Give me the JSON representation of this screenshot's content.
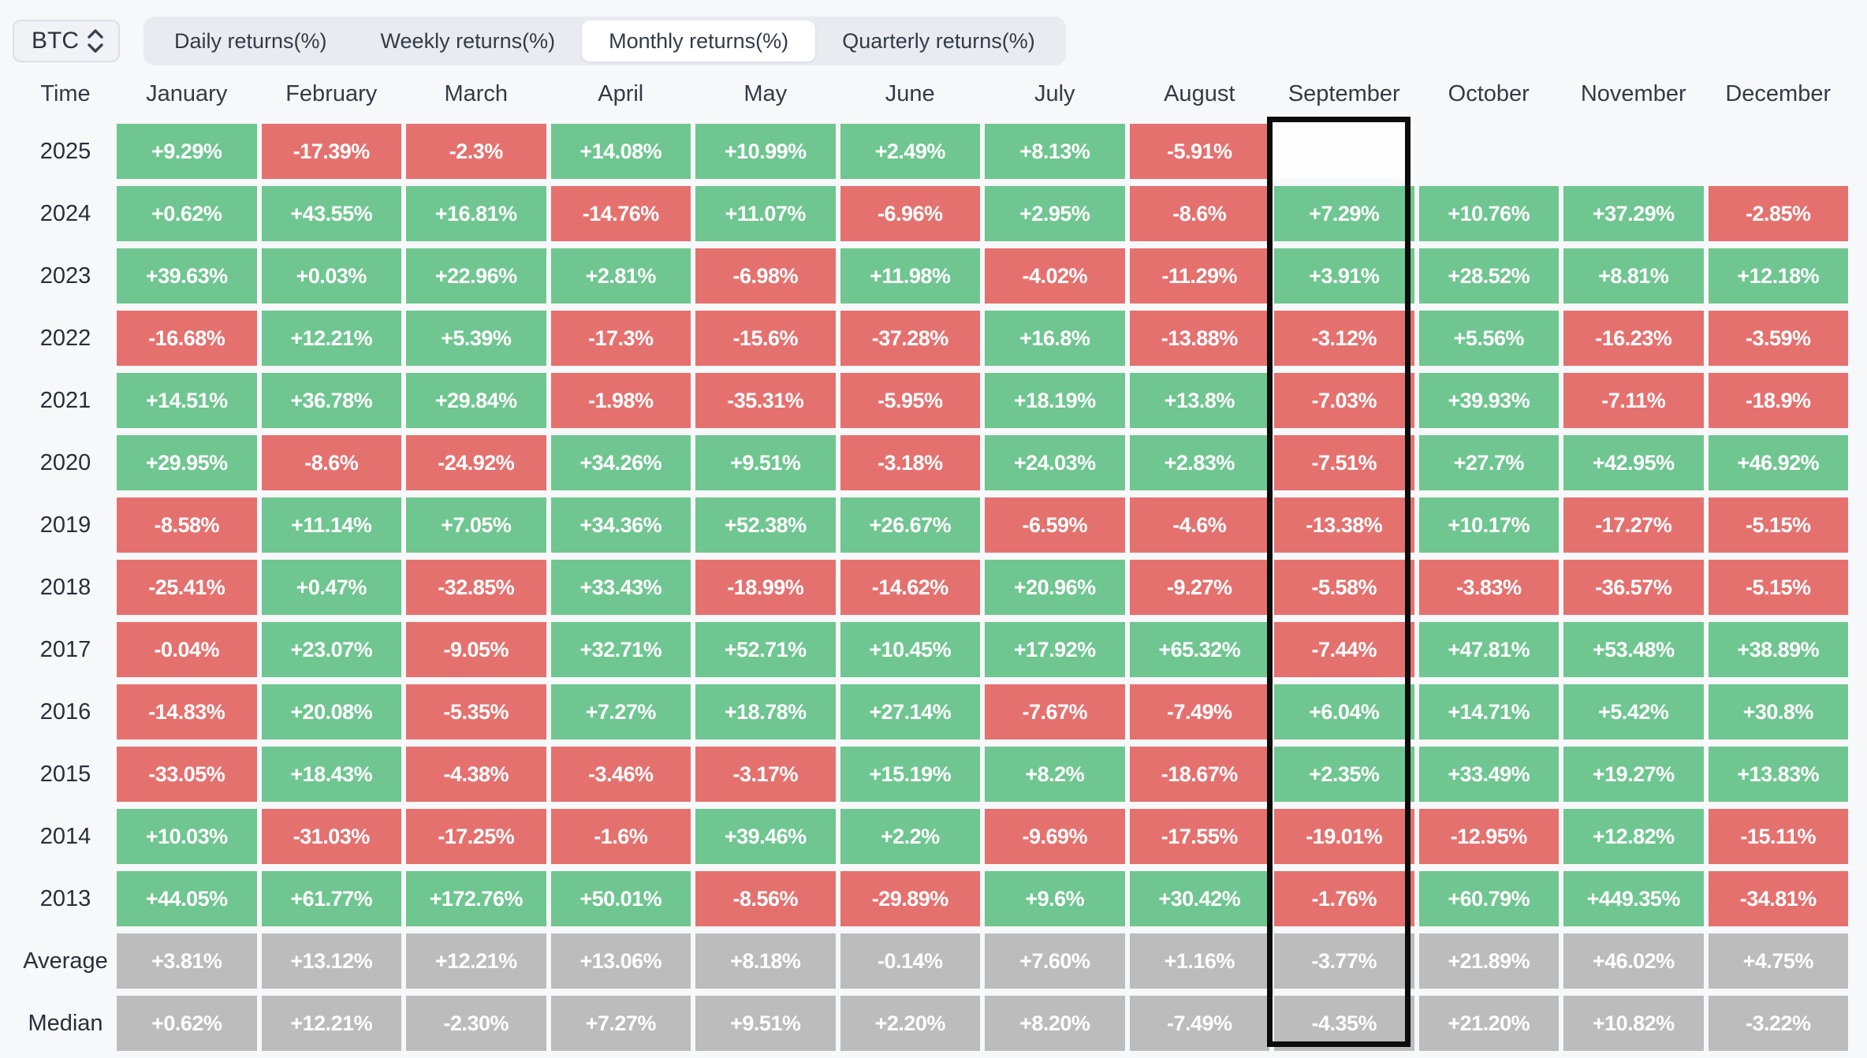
{
  "controls": {
    "asset": "BTC",
    "tabs": [
      {
        "label": "Daily returns(%)",
        "active": false
      },
      {
        "label": "Weekly returns(%)",
        "active": false
      },
      {
        "label": "Monthly returns(%)",
        "active": true
      },
      {
        "label": "Quarterly returns(%)",
        "active": false
      }
    ]
  },
  "table": {
    "time_header": "Time",
    "months": [
      "January",
      "February",
      "March",
      "April",
      "May",
      "June",
      "July",
      "August",
      "September",
      "October",
      "November",
      "December"
    ],
    "highlighted_column": "September",
    "rows": [
      {
        "label": "2025",
        "type": "year",
        "values": [
          "+9.29%",
          "-17.39%",
          "-2.3%",
          "+14.08%",
          "+10.99%",
          "+2.49%",
          "+8.13%",
          "-5.91%",
          "",
          "",
          "",
          ""
        ]
      },
      {
        "label": "2024",
        "type": "year",
        "values": [
          "+0.62%",
          "+43.55%",
          "+16.81%",
          "-14.76%",
          "+11.07%",
          "-6.96%",
          "+2.95%",
          "-8.6%",
          "+7.29%",
          "+10.76%",
          "+37.29%",
          "-2.85%"
        ]
      },
      {
        "label": "2023",
        "type": "year",
        "values": [
          "+39.63%",
          "+0.03%",
          "+22.96%",
          "+2.81%",
          "-6.98%",
          "+11.98%",
          "-4.02%",
          "-11.29%",
          "+3.91%",
          "+28.52%",
          "+8.81%",
          "+12.18%"
        ]
      },
      {
        "label": "2022",
        "type": "year",
        "values": [
          "-16.68%",
          "+12.21%",
          "+5.39%",
          "-17.3%",
          "-15.6%",
          "-37.28%",
          "+16.8%",
          "-13.88%",
          "-3.12%",
          "+5.56%",
          "-16.23%",
          "-3.59%"
        ]
      },
      {
        "label": "2021",
        "type": "year",
        "values": [
          "+14.51%",
          "+36.78%",
          "+29.84%",
          "-1.98%",
          "-35.31%",
          "-5.95%",
          "+18.19%",
          "+13.8%",
          "-7.03%",
          "+39.93%",
          "-7.11%",
          "-18.9%"
        ]
      },
      {
        "label": "2020",
        "type": "year",
        "values": [
          "+29.95%",
          "-8.6%",
          "-24.92%",
          "+34.26%",
          "+9.51%",
          "-3.18%",
          "+24.03%",
          "+2.83%",
          "-7.51%",
          "+27.7%",
          "+42.95%",
          "+46.92%"
        ]
      },
      {
        "label": "2019",
        "type": "year",
        "values": [
          "-8.58%",
          "+11.14%",
          "+7.05%",
          "+34.36%",
          "+52.38%",
          "+26.67%",
          "-6.59%",
          "-4.6%",
          "-13.38%",
          "+10.17%",
          "-17.27%",
          "-5.15%"
        ]
      },
      {
        "label": "2018",
        "type": "year",
        "values": [
          "-25.41%",
          "+0.47%",
          "-32.85%",
          "+33.43%",
          "-18.99%",
          "-14.62%",
          "+20.96%",
          "-9.27%",
          "-5.58%",
          "-3.83%",
          "-36.57%",
          "-5.15%"
        ]
      },
      {
        "label": "2017",
        "type": "year",
        "values": [
          "-0.04%",
          "+23.07%",
          "-9.05%",
          "+32.71%",
          "+52.71%",
          "+10.45%",
          "+17.92%",
          "+65.32%",
          "-7.44%",
          "+47.81%",
          "+53.48%",
          "+38.89%"
        ]
      },
      {
        "label": "2016",
        "type": "year",
        "values": [
          "-14.83%",
          "+20.08%",
          "-5.35%",
          "+7.27%",
          "+18.78%",
          "+27.14%",
          "-7.67%",
          "-7.49%",
          "+6.04%",
          "+14.71%",
          "+5.42%",
          "+30.8%"
        ]
      },
      {
        "label": "2015",
        "type": "year",
        "values": [
          "-33.05%",
          "+18.43%",
          "-4.38%",
          "-3.46%",
          "-3.17%",
          "+15.19%",
          "+8.2%",
          "-18.67%",
          "+2.35%",
          "+33.49%",
          "+19.27%",
          "+13.83%"
        ]
      },
      {
        "label": "2014",
        "type": "year",
        "values": [
          "+10.03%",
          "-31.03%",
          "-17.25%",
          "-1.6%",
          "+39.46%",
          "+2.2%",
          "-9.69%",
          "-17.55%",
          "-19.01%",
          "-12.95%",
          "+12.82%",
          "-15.11%"
        ]
      },
      {
        "label": "2013",
        "type": "year",
        "values": [
          "+44.05%",
          "+61.77%",
          "+172.76%",
          "+50.01%",
          "-8.56%",
          "-29.89%",
          "+9.6%",
          "+30.42%",
          "-1.76%",
          "+60.79%",
          "+449.35%",
          "-34.81%"
        ]
      },
      {
        "label": "Average",
        "type": "summary",
        "values": [
          "+3.81%",
          "+13.12%",
          "+12.21%",
          "+13.06%",
          "+8.18%",
          "-0.14%",
          "+7.60%",
          "+1.16%",
          "-3.77%",
          "+21.89%",
          "+46.02%",
          "+4.75%"
        ]
      },
      {
        "label": "Median",
        "type": "summary",
        "values": [
          "+0.62%",
          "+12.21%",
          "-2.30%",
          "+7.27%",
          "+9.51%",
          "+2.20%",
          "+8.20%",
          "-7.49%",
          "-4.35%",
          "+21.20%",
          "+10.82%",
          "-3.22%"
        ]
      }
    ]
  },
  "colors": {
    "positive": "#6fc690",
    "negative": "#e5716f",
    "summary": "#bcbcbd",
    "background": "#f7f8fa",
    "highlight_border": "#0c0c0c",
    "tab_bar": "#e9ebf1",
    "active_tab": "#ffffff"
  },
  "chart_data": {
    "type": "heatmap",
    "title": "BTC Monthly returns(%)",
    "units": "%",
    "columns": [
      "January",
      "February",
      "March",
      "April",
      "May",
      "June",
      "July",
      "August",
      "September",
      "October",
      "November",
      "December"
    ],
    "rows": [
      "2025",
      "2024",
      "2023",
      "2022",
      "2021",
      "2020",
      "2019",
      "2018",
      "2017",
      "2016",
      "2015",
      "2014",
      "2013",
      "Average",
      "Median"
    ],
    "values": [
      [
        9.29,
        -17.39,
        -2.3,
        14.08,
        10.99,
        2.49,
        8.13,
        -5.91,
        null,
        null,
        null,
        null
      ],
      [
        0.62,
        43.55,
        16.81,
        -14.76,
        11.07,
        -6.96,
        2.95,
        -8.6,
        7.29,
        10.76,
        37.29,
        -2.85
      ],
      [
        39.63,
        0.03,
        22.96,
        2.81,
        -6.98,
        11.98,
        -4.02,
        -11.29,
        3.91,
        28.52,
        8.81,
        12.18
      ],
      [
        -16.68,
        12.21,
        5.39,
        -17.3,
        -15.6,
        -37.28,
        16.8,
        -13.88,
        -3.12,
        5.56,
        -16.23,
        -3.59
      ],
      [
        14.51,
        36.78,
        29.84,
        -1.98,
        -35.31,
        -5.95,
        18.19,
        13.8,
        -7.03,
        39.93,
        -7.11,
        -18.9
      ],
      [
        29.95,
        -8.6,
        -24.92,
        34.26,
        9.51,
        -3.18,
        24.03,
        2.83,
        -7.51,
        27.7,
        42.95,
        46.92
      ],
      [
        -8.58,
        11.14,
        7.05,
        34.36,
        52.38,
        26.67,
        -6.59,
        -4.6,
        -13.38,
        10.17,
        -17.27,
        -5.15
      ],
      [
        -25.41,
        0.47,
        -32.85,
        33.43,
        -18.99,
        -14.62,
        20.96,
        -9.27,
        -5.58,
        -3.83,
        -36.57,
        -5.15
      ],
      [
        -0.04,
        23.07,
        -9.05,
        32.71,
        52.71,
        10.45,
        17.92,
        65.32,
        -7.44,
        47.81,
        53.48,
        38.89
      ],
      [
        -14.83,
        20.08,
        -5.35,
        7.27,
        18.78,
        27.14,
        -7.67,
        -7.49,
        6.04,
        14.71,
        5.42,
        30.8
      ],
      [
        -33.05,
        18.43,
        -4.38,
        -3.46,
        -3.17,
        15.19,
        8.2,
        -18.67,
        2.35,
        33.49,
        19.27,
        13.83
      ],
      [
        10.03,
        -31.03,
        -17.25,
        -1.6,
        39.46,
        2.2,
        -9.69,
        -17.55,
        -19.01,
        -12.95,
        12.82,
        -15.11
      ],
      [
        44.05,
        61.77,
        172.76,
        50.01,
        -8.56,
        -29.89,
        9.6,
        30.42,
        -1.76,
        60.79,
        449.35,
        -34.81
      ],
      [
        3.81,
        13.12,
        12.21,
        13.06,
        8.18,
        -0.14,
        7.6,
        1.16,
        -3.77,
        21.89,
        46.02,
        4.75
      ],
      [
        0.62,
        12.21,
        -2.3,
        7.27,
        9.51,
        2.2,
        8.2,
        -7.49,
        -4.35,
        21.2,
        10.82,
        -3.22
      ]
    ],
    "color_rule": "positive=green, negative=red, Average/Median rows=gray",
    "highlighted_column": "September",
    "legend_position": "none",
    "grid": false
  }
}
